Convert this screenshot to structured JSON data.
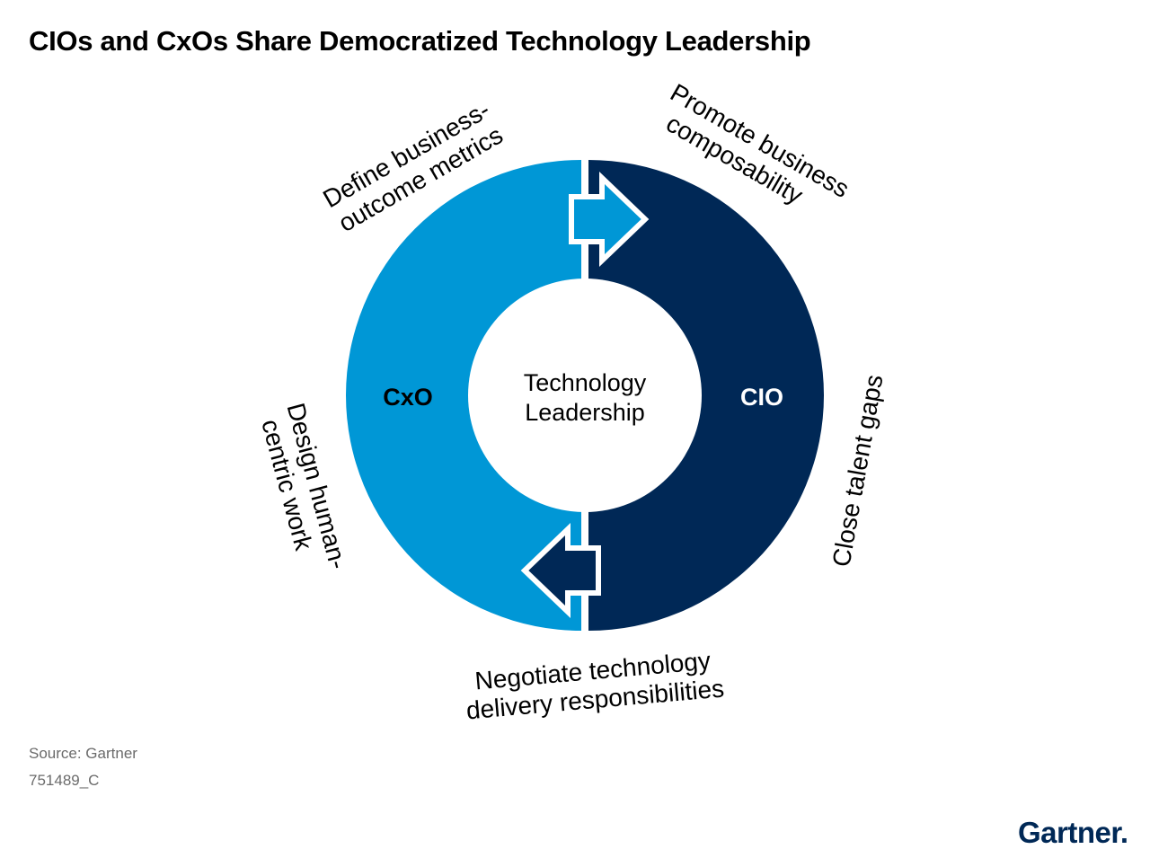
{
  "title": "CIOs and CxOs Share Democratized Technology Leadership",
  "center": {
    "line1": "Technology",
    "line2": "Leadership"
  },
  "roles": {
    "left": "CxO",
    "right": "CIO"
  },
  "labels": {
    "top_left": {
      "line1": "Define business-",
      "line2": "outcome metrics"
    },
    "top_right": {
      "line1": "Promote business",
      "line2": "composability"
    },
    "right": {
      "line1": "Close talent gaps"
    },
    "bottom": {
      "line1": "Negotiate technology",
      "line2": "delivery responsibilities"
    },
    "left": {
      "line1": "Design human-",
      "line2": "centric work"
    }
  },
  "footer": {
    "source": "Source: Gartner",
    "id": "751489_C"
  },
  "logo": {
    "text": "Gartner",
    "mark": "."
  },
  "colors": {
    "cxo": "#0097D6",
    "cio": "#002856",
    "center_fill": "#FFFFFF",
    "role_label_left": "#000000",
    "role_label_right": "#FFFFFF"
  }
}
